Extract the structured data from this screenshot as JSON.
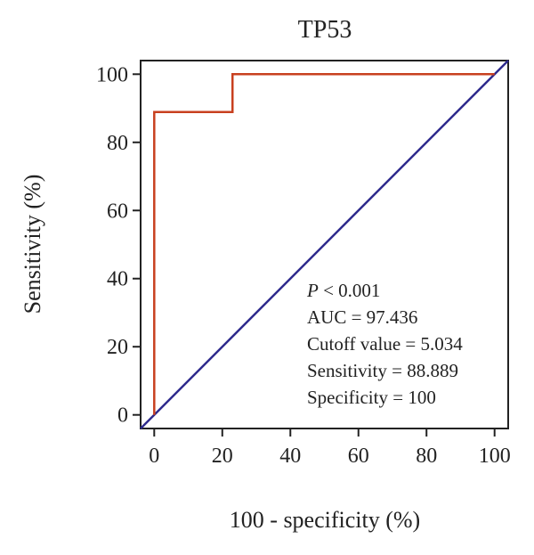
{
  "chart_data": {
    "type": "line",
    "title": "TP53",
    "xlabel": "100 - specificity (%)",
    "ylabel": "Sensitivity (%)",
    "xlim": [
      -4,
      104
    ],
    "ylim": [
      -4,
      104
    ],
    "xticks": [
      "0",
      "20",
      "40",
      "60",
      "80",
      "100"
    ],
    "yticks": [
      "0",
      "20",
      "40",
      "60",
      "80",
      "100"
    ],
    "grid": false,
    "series": [
      {
        "color": "#c8401f",
        "x": [
          0,
          0,
          23,
          23,
          100
        ],
        "y": [
          0,
          88.889,
          88.889,
          100,
          100
        ]
      },
      {
        "color": "#2e2a8c",
        "x": [
          -4,
          104
        ],
        "y": [
          -4,
          104
        ]
      }
    ],
    "annotation": {
      "p_prefix": "P",
      "p_rest": " < 0.001",
      "lines": [
        "AUC = 97.436",
        "Cutoff value = 5.034",
        "Sensitivity = 88.889",
        "Specificity = 100"
      ]
    }
  }
}
